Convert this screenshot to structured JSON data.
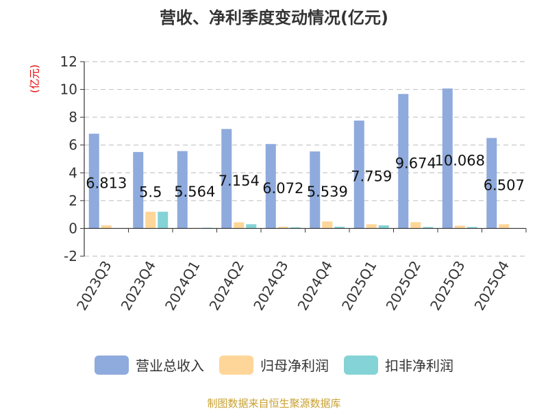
{
  "page_title": "营收、净利季度变动情况(亿元)",
  "source": "制图数据来自恒生聚源数据库",
  "chart_data": {
    "type": "bar",
    "title": "营收、净利季度变动情况(亿元)",
    "ylabel": "(亿元)",
    "xlabel": "",
    "categories": [
      "2023Q3",
      "2023Q4",
      "2024Q1",
      "2024Q2",
      "2024Q3",
      "2024Q4",
      "2025Q1",
      "2025Q2",
      "2025Q3",
      "2025Q4"
    ],
    "ylim": [
      -2,
      12
    ],
    "yticks": [
      -2,
      0,
      2,
      4,
      6,
      8,
      10,
      12
    ],
    "grid": true,
    "legend_position": "bottom",
    "series": [
      {
        "name": "营业总收入",
        "color": "#8faadc",
        "values": [
          6.813,
          5.5,
          5.564,
          7.154,
          6.072,
          5.539,
          7.759,
          9.674,
          10.068,
          6.507
        ]
      },
      {
        "name": "归母净利润",
        "color": "#ffd699",
        "values": [
          0.22,
          1.2,
          0.04,
          0.44,
          0.12,
          0.5,
          0.3,
          0.45,
          0.2,
          0.3
        ]
      },
      {
        "name": "扣非净利润",
        "color": "#84d3d6",
        "values": [
          0.0,
          1.2,
          0.05,
          0.3,
          0.08,
          0.12,
          0.22,
          0.1,
          0.1,
          0.0
        ]
      }
    ],
    "data_labels": [
      "6.813",
      "5.5",
      "5.564",
      "7.154",
      "6.072",
      "5.539",
      "7.759",
      "9.674",
      "10.068",
      "6.507"
    ],
    "data_label_series": "营业总收入"
  }
}
